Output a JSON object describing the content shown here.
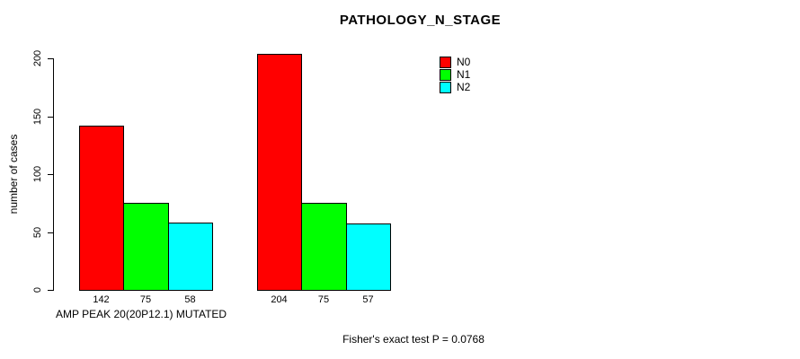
{
  "chart_data": {
    "type": "bar",
    "title": "PATHOLOGY_N_STAGE",
    "ylabel": "number of cases",
    "xlabel": "AMP PEAK 20(20P12.1) MUTATED",
    "footer": "Fisher's exact test P = 0.0768",
    "ylim": [
      0,
      200
    ],
    "yticks": [
      0,
      50,
      100,
      150,
      200
    ],
    "grid": false,
    "legend_position": "top-right",
    "show_bar_values": true,
    "num_groups": 2,
    "group_labels": [
      "AMP PEAK 20(20P12.1) MUTATED",
      ""
    ],
    "series": [
      {
        "name": "N0",
        "color": "#ff0000",
        "values": [
          142,
          204
        ]
      },
      {
        "name": "N1",
        "color": "#00ff00",
        "values": [
          75,
          75
        ]
      },
      {
        "name": "N2",
        "color": "#00ffff",
        "values": [
          58,
          57
        ]
      }
    ],
    "colors": {
      "axis": "#000000",
      "text": "#000000",
      "background": "#ffffff"
    }
  }
}
